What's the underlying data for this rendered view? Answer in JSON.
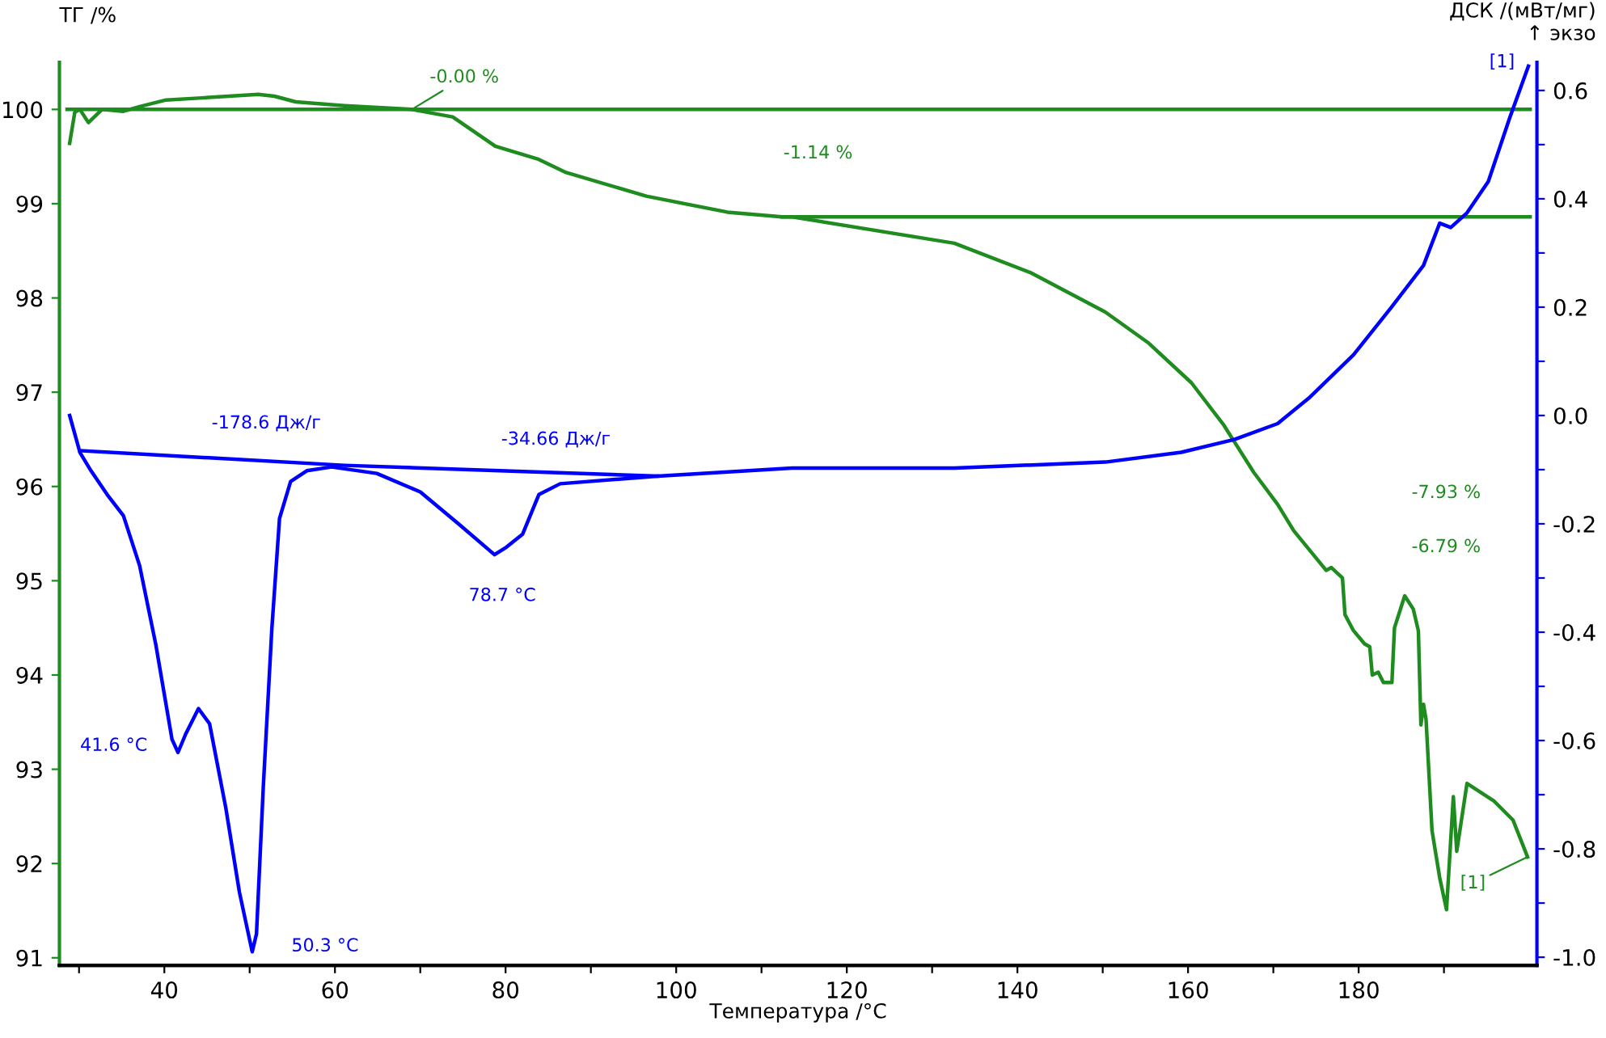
{
  "chart_data": {
    "type": "line",
    "xlabel": "Температура /°C",
    "ylabel": "ТГ /%",
    "y2label": "ДСК /(мВт/мг)\n↑ экзо",
    "xlim": [
      27.7,
      200.9
    ],
    "ylim": [
      90.92,
      100.5
    ],
    "y2lim": [
      -1.015,
      0.652
    ],
    "xticks": [
      {
        "value": 30,
        "label": null
      },
      40,
      {
        "value": 50,
        "label": null
      },
      60,
      {
        "value": 70,
        "label": null
      },
      80,
      {
        "value": 90,
        "label": null
      },
      100,
      {
        "value": 110,
        "label": null
      },
      120,
      {
        "value": 130,
        "label": null
      },
      140,
      {
        "value": 150,
        "label": null
      },
      160,
      {
        "value": 170,
        "label": null
      },
      180,
      {
        "value": 190,
        "label": null
      }
    ],
    "yticks": [
      91,
      92,
      93,
      94,
      95,
      96,
      97,
      98,
      99,
      100
    ],
    "y2ticks": [
      {
        "value": -1.0,
        "label": "-1.0"
      },
      {
        "value": -0.9,
        "label": null
      },
      {
        "value": -0.8,
        "label": "-0.8"
      },
      {
        "value": -0.7,
        "label": null
      },
      {
        "value": -0.6,
        "label": "-0.6"
      },
      {
        "value": -0.5,
        "label": null
      },
      {
        "value": -0.4,
        "label": "-0.4"
      },
      {
        "value": -0.3,
        "label": null
      },
      {
        "value": -0.2,
        "label": "-0.2"
      },
      {
        "value": -0.1,
        "label": null
      },
      {
        "value": 0.0,
        "label": "0.0"
      },
      {
        "value": 0.1,
        "label": null
      },
      {
        "value": 0.2,
        "label": "0.2"
      },
      {
        "value": 0.3,
        "label": null
      },
      {
        "value": 0.4,
        "label": "0.4"
      },
      {
        "value": 0.5,
        "label": null
      },
      {
        "value": 0.6,
        "label": "0.6"
      }
    ],
    "grid": false,
    "legend": false,
    "marker": "none",
    "line_style": "solid",
    "series": [
      {
        "color": "#1e8c1e",
        "x": [
          28.9,
          29.5,
          30.1,
          31.1,
          32.7,
          35.2,
          37.1,
          40.2,
          44,
          51,
          52.9,
          55.4,
          61.1,
          69,
          73.8,
          78.8,
          83.9,
          87.1,
          96.5,
          106,
          112.4,
          113.6,
          132.6,
          141.5,
          150.3,
          155.4,
          160.4,
          164.2,
          167.7,
          170.5,
          172.4,
          176.2,
          176.8,
          178.1,
          178.4,
          179.4,
          180.7,
          181.3,
          181.6,
          182.3,
          182.9,
          183.9,
          184.2,
          185.4,
          186.4,
          187.0,
          187.3,
          187.6,
          187.9,
          188.6,
          189.5,
          190.3,
          191.1,
          191.5,
          192.7,
          195.9,
          198.1,
          199.8
        ],
        "values": [
          99.64,
          99.97,
          100.0,
          99.86,
          100.0,
          99.98,
          100.03,
          100.1,
          100.12,
          100.16,
          100.14,
          100.08,
          100.04,
          100.0,
          99.92,
          99.61,
          99.47,
          99.33,
          99.08,
          98.91,
          98.86,
          98.86,
          98.58,
          98.27,
          97.85,
          97.52,
          97.1,
          96.65,
          96.15,
          95.81,
          95.53,
          95.11,
          95.14,
          95.03,
          94.64,
          94.47,
          94.33,
          94.3,
          94.0,
          94.03,
          93.92,
          93.92,
          94.5,
          94.84,
          94.7,
          94.47,
          93.47,
          93.69,
          93.53,
          92.35,
          91.85,
          91.51,
          92.71,
          92.13,
          92.85,
          92.66,
          92.46,
          92.07
        ]
      },
      {
        "color": "#1e8c1e",
        "x": [
          28.6,
          200.1
        ],
        "values": [
          100.0,
          100.0
        ]
      },
      {
        "color": "#1e8c1e",
        "x": [
          112.4,
          200.1
        ],
        "values": [
          98.86,
          98.86
        ]
      },
      {
        "color": "#0000ff",
        "axis": "y2",
        "x": [
          28.9,
          30.1,
          31.4,
          33.3,
          35.2,
          37.1,
          39.0,
          40.9,
          41.6,
          42.5,
          44.0,
          45.3,
          47.2,
          48.8,
          50.3,
          50.8,
          51.6,
          52.6,
          53.5,
          54.8,
          56.7,
          59.6,
          64.9,
          70,
          74.4,
          78.7,
          80.1,
          82.0,
          83.9,
          86.4,
          97.8,
          113.6,
          132.6,
          150.3,
          159.2,
          165.5,
          170.5,
          174.3,
          179.4,
          183.8,
          187.6,
          189.5,
          190.8,
          192.7,
          195.2,
          197.7,
          199.9
        ],
        "values": [
          0.0,
          -0.068,
          -0.102,
          -0.146,
          -0.185,
          -0.277,
          -0.423,
          -0.598,
          -0.622,
          -0.588,
          -0.541,
          -0.569,
          -0.724,
          -0.88,
          -0.99,
          -0.957,
          -0.685,
          -0.394,
          -0.19,
          -0.122,
          -0.102,
          -0.095,
          -0.107,
          -0.141,
          -0.199,
          -0.257,
          -0.243,
          -0.219,
          -0.146,
          -0.126,
          -0.112,
          -0.097,
          -0.097,
          -0.086,
          -0.068,
          -0.044,
          -0.015,
          0.034,
          0.112,
          0.199,
          0.277,
          0.355,
          0.347,
          0.374,
          0.432,
          0.549,
          0.645
        ]
      },
      {
        "color": "#0000ff",
        "axis": "y2",
        "x": [
          30.1,
          61.1,
          97.8
        ],
        "values": [
          -0.065,
          -0.092,
          -0.112
        ]
      }
    ],
    "annotations": [
      {
        "text": "-0.00 %",
        "x": 69,
        "y": 100.0
      },
      "-1.14 %",
      "-7.93 %",
      "-6.79 %",
      {
        "text": "[1]",
        "x": 199.8,
        "y": 92.07
      },
      "-178.6 Дж/г",
      "-34.66 Дж/г",
      "41.6 °C",
      "50.3 °C",
      "78.7 °C",
      "[1]"
    ]
  }
}
